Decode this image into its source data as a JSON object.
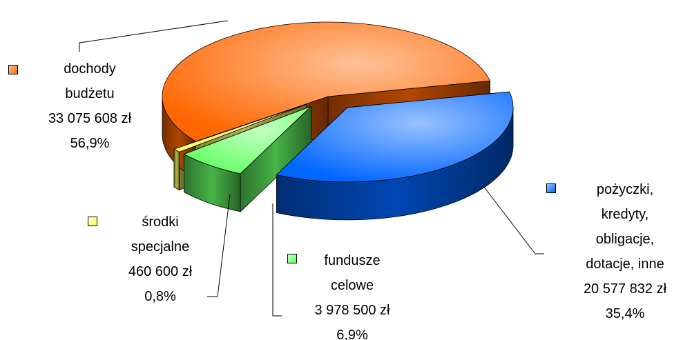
{
  "chart_data": {
    "type": "pie3d",
    "categories": [
      "dochody budżetu",
      "pożyczki, kredyty, obligacje, dotacje, inne",
      "fundusze celowe",
      "środki specjalne"
    ],
    "amount_labels": [
      "33 075 608 zł",
      "20 577 832 zł",
      "3 978 500 zł",
      "460 600 zł"
    ],
    "values": [
      56.9,
      35.4,
      6.9,
      0.8
    ],
    "value_labels": [
      "56,9%",
      "35,4%",
      "6,9%",
      "0,8%"
    ],
    "colors": [
      "#ff6600",
      "#0066ff",
      "#66ff66",
      "#ffff66"
    ]
  }
}
